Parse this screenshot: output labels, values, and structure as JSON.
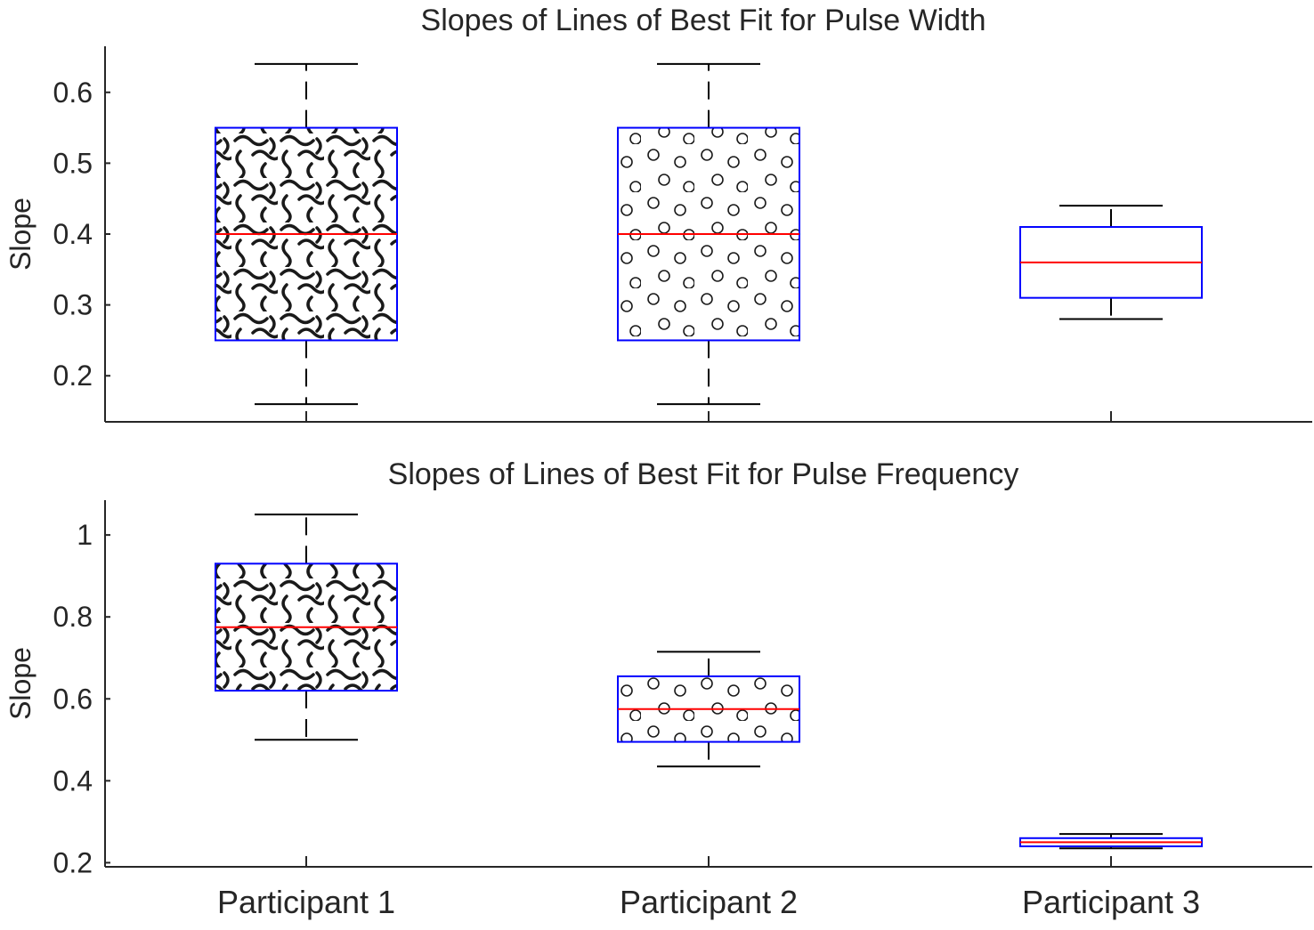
{
  "colors": {
    "box_edge": "#0000ff",
    "median": "#ff0000",
    "whisker": "#000000",
    "axis": "#262626",
    "text": "#262626"
  },
  "chart_data": [
    {
      "type": "box",
      "title": "Slopes of Lines of Best Fit for Pulse Width",
      "ylabel": "Slope",
      "xlabel": "",
      "categories": [
        "Participant 1",
        "Participant 2",
        "Participant 3"
      ],
      "show_category_labels": false,
      "ylim": [
        0.135,
        0.665
      ],
      "yticks": [
        0.2,
        0.3,
        0.4,
        0.5,
        0.6
      ],
      "ytick_labels": [
        "0.2",
        "0.3",
        "0.4",
        "0.5",
        "0.6"
      ],
      "grid": false,
      "boxes": [
        {
          "category": "Participant 1",
          "min": 0.16,
          "q1": 0.25,
          "median": 0.4,
          "q3": 0.55,
          "max": 0.64,
          "fill_pattern": "squiggles"
        },
        {
          "category": "Participant 2",
          "min": 0.16,
          "q1": 0.25,
          "median": 0.4,
          "q3": 0.55,
          "max": 0.64,
          "fill_pattern": "circles"
        },
        {
          "category": "Participant 3",
          "min": 0.28,
          "q1": 0.31,
          "median": 0.36,
          "q3": 0.41,
          "max": 0.44,
          "fill_pattern": "none"
        }
      ]
    },
    {
      "type": "box",
      "title": "Slopes of Lines of Best Fit for Pulse Frequency",
      "ylabel": "Slope",
      "xlabel": "",
      "categories": [
        "Participant 1",
        "Participant 2",
        "Participant 3"
      ],
      "show_category_labels": true,
      "ylim": [
        0.19,
        1.085
      ],
      "yticks": [
        0.2,
        0.4,
        0.6,
        0.8,
        1.0
      ],
      "ytick_labels": [
        "0.2",
        "0.4",
        "0.6",
        "0.8",
        "1"
      ],
      "grid": false,
      "boxes": [
        {
          "category": "Participant 1",
          "min": 0.5,
          "q1": 0.62,
          "median": 0.775,
          "q3": 0.93,
          "max": 1.05,
          "fill_pattern": "squiggles"
        },
        {
          "category": "Participant 2",
          "min": 0.435,
          "q1": 0.495,
          "median": 0.575,
          "q3": 0.655,
          "max": 0.715,
          "fill_pattern": "circles"
        },
        {
          "category": "Participant 3",
          "min": 0.235,
          "q1": 0.24,
          "median": 0.25,
          "q3": 0.26,
          "max": 0.27,
          "fill_pattern": "none"
        }
      ]
    }
  ]
}
